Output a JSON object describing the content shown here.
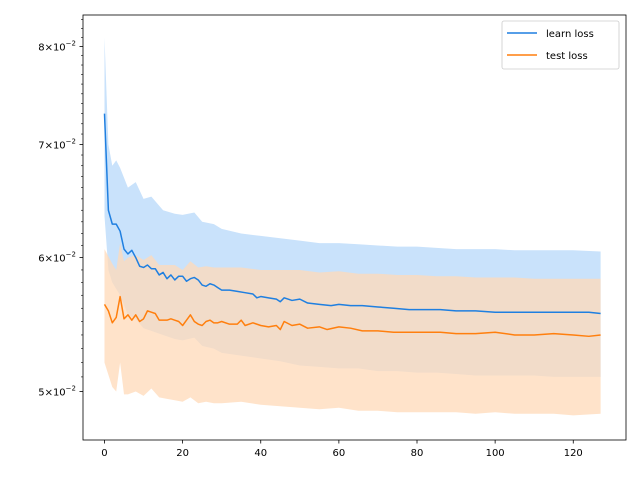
{
  "chart_data": {
    "type": "line",
    "title": "",
    "xlabel": "",
    "ylabel": "",
    "yscale": "log",
    "xlim": [
      -5.5,
      133.5
    ],
    "ylim": [
      0.0468,
      0.0835
    ],
    "grid": false,
    "legend_position": "top-right",
    "x_ticks": [
      0,
      20,
      40,
      60,
      80,
      100,
      120
    ],
    "x_tick_labels": [
      "0",
      "20",
      "40",
      "60",
      "80",
      "100",
      "120"
    ],
    "y_ticks": [
      0.05,
      0.06,
      0.07,
      0.08
    ],
    "y_tick_labels": [
      {
        "mantissa": "5",
        "base": "10",
        "exponent": "−2"
      },
      {
        "mantissa": "6",
        "base": "10",
        "exponent": "−2"
      },
      {
        "mantissa": "7",
        "base": "10",
        "exponent": "−2"
      },
      {
        "mantissa": "8",
        "base": "10",
        "exponent": "−2"
      }
    ],
    "series": [
      {
        "name": "learn loss",
        "color": "#1f7fe0",
        "band_color": "#c9e2fb",
        "points": [
          [
            0,
            0.073
          ],
          [
            1,
            0.064
          ],
          [
            2,
            0.0628
          ],
          [
            3,
            0.0628
          ],
          [
            4,
            0.0622
          ],
          [
            5,
            0.0607
          ],
          [
            6,
            0.0603
          ],
          [
            7,
            0.0606
          ],
          [
            8,
            0.06
          ],
          [
            9,
            0.0593
          ],
          [
            10,
            0.0592
          ],
          [
            11,
            0.0594
          ],
          [
            12,
            0.0591
          ],
          [
            13,
            0.0591
          ],
          [
            14,
            0.0586
          ],
          [
            15,
            0.0588
          ],
          [
            16,
            0.0583
          ],
          [
            17,
            0.0586
          ],
          [
            18,
            0.0582
          ],
          [
            19,
            0.0585
          ],
          [
            20,
            0.0585
          ],
          [
            21,
            0.0581
          ],
          [
            22,
            0.0583
          ],
          [
            23,
            0.0584
          ],
          [
            24,
            0.0582
          ],
          [
            25,
            0.0578
          ],
          [
            26,
            0.0577
          ],
          [
            27,
            0.0579
          ],
          [
            28,
            0.0578
          ],
          [
            29,
            0.0576
          ],
          [
            30,
            0.0574
          ],
          [
            32,
            0.0574
          ],
          [
            34,
            0.0573
          ],
          [
            36,
            0.0572
          ],
          [
            38,
            0.0571
          ],
          [
            39,
            0.0568
          ],
          [
            40,
            0.0569
          ],
          [
            42,
            0.0568
          ],
          [
            44,
            0.0567
          ],
          [
            45,
            0.0565
          ],
          [
            46,
            0.0568
          ],
          [
            48,
            0.0566
          ],
          [
            50,
            0.0567
          ],
          [
            52,
            0.0564
          ],
          [
            55,
            0.0563
          ],
          [
            58,
            0.0562
          ],
          [
            60,
            0.0563
          ],
          [
            63,
            0.0562
          ],
          [
            66,
            0.0562
          ],
          [
            70,
            0.0561
          ],
          [
            74,
            0.056
          ],
          [
            78,
            0.0559
          ],
          [
            82,
            0.0559
          ],
          [
            86,
            0.0559
          ],
          [
            90,
            0.0558
          ],
          [
            95,
            0.0558
          ],
          [
            100,
            0.0557
          ],
          [
            105,
            0.0557
          ],
          [
            110,
            0.0557
          ],
          [
            115,
            0.0557
          ],
          [
            120,
            0.0557
          ],
          [
            124,
            0.0557
          ],
          [
            127,
            0.0556
          ]
        ],
        "band": [
          [
            0,
            0.081,
            0.0635
          ],
          [
            1,
            0.07,
            0.059
          ],
          [
            2,
            0.068,
            0.058
          ],
          [
            3,
            0.0685,
            0.0575
          ],
          [
            4,
            0.0678,
            0.057
          ],
          [
            6,
            0.066,
            0.0555
          ],
          [
            8,
            0.0665,
            0.0552
          ],
          [
            10,
            0.065,
            0.0545
          ],
          [
            12,
            0.0652,
            0.0543
          ],
          [
            15,
            0.064,
            0.054
          ],
          [
            18,
            0.0637,
            0.0537
          ],
          [
            20,
            0.0636,
            0.0536
          ],
          [
            23,
            0.0638,
            0.0538
          ],
          [
            25,
            0.063,
            0.0532
          ],
          [
            28,
            0.0628,
            0.053
          ],
          [
            30,
            0.0624,
            0.0527
          ],
          [
            35,
            0.062,
            0.0525
          ],
          [
            40,
            0.0618,
            0.0523
          ],
          [
            45,
            0.0616,
            0.0521
          ],
          [
            50,
            0.0614,
            0.0518
          ],
          [
            55,
            0.0612,
            0.0517
          ],
          [
            60,
            0.0612,
            0.0516
          ],
          [
            65,
            0.0611,
            0.0516
          ],
          [
            70,
            0.061,
            0.0514
          ],
          [
            75,
            0.0609,
            0.0514
          ],
          [
            80,
            0.0609,
            0.0513
          ],
          [
            85,
            0.0608,
            0.0513
          ],
          [
            90,
            0.0607,
            0.0512
          ],
          [
            95,
            0.0607,
            0.0511
          ],
          [
            100,
            0.0607,
            0.0511
          ],
          [
            105,
            0.0606,
            0.0511
          ],
          [
            110,
            0.0606,
            0.0511
          ],
          [
            115,
            0.0606,
            0.051
          ],
          [
            120,
            0.0606,
            0.051
          ],
          [
            127,
            0.0605,
            0.051
          ]
        ]
      },
      {
        "name": "test loss",
        "color": "#ff7f0e",
        "band_color": "#ffd9b8",
        "points": [
          [
            0,
            0.0563
          ],
          [
            1,
            0.0558
          ],
          [
            2,
            0.0549
          ],
          [
            3,
            0.0553
          ],
          [
            4,
            0.0569
          ],
          [
            5,
            0.0552
          ],
          [
            6,
            0.0555
          ],
          [
            7,
            0.0551
          ],
          [
            8,
            0.0555
          ],
          [
            9,
            0.055
          ],
          [
            10,
            0.0552
          ],
          [
            11,
            0.0558
          ],
          [
            12,
            0.0557
          ],
          [
            13,
            0.0556
          ],
          [
            14,
            0.0551
          ],
          [
            15,
            0.0551
          ],
          [
            16,
            0.0551
          ],
          [
            17,
            0.0552
          ],
          [
            18,
            0.0551
          ],
          [
            19,
            0.055
          ],
          [
            20,
            0.0547
          ],
          [
            21,
            0.0551
          ],
          [
            22,
            0.0555
          ],
          [
            23,
            0.055
          ],
          [
            24,
            0.0548
          ],
          [
            25,
            0.0547
          ],
          [
            26,
            0.055
          ],
          [
            27,
            0.0551
          ],
          [
            28,
            0.0549
          ],
          [
            29,
            0.0549
          ],
          [
            30,
            0.055
          ],
          [
            32,
            0.0548
          ],
          [
            34,
            0.0548
          ],
          [
            35,
            0.0551
          ],
          [
            36,
            0.0547
          ],
          [
            38,
            0.0549
          ],
          [
            40,
            0.0547
          ],
          [
            42,
            0.0546
          ],
          [
            44,
            0.0547
          ],
          [
            45,
            0.0544
          ],
          [
            46,
            0.055
          ],
          [
            48,
            0.0547
          ],
          [
            50,
            0.0548
          ],
          [
            52,
            0.0545
          ],
          [
            55,
            0.0546
          ],
          [
            57,
            0.0544
          ],
          [
            60,
            0.0546
          ],
          [
            63,
            0.0545
          ],
          [
            66,
            0.0543
          ],
          [
            70,
            0.0543
          ],
          [
            74,
            0.0542
          ],
          [
            78,
            0.0542
          ],
          [
            82,
            0.0542
          ],
          [
            86,
            0.0542
          ],
          [
            90,
            0.0541
          ],
          [
            95,
            0.0541
          ],
          [
            100,
            0.0542
          ],
          [
            105,
            0.054
          ],
          [
            110,
            0.054
          ],
          [
            115,
            0.0541
          ],
          [
            120,
            0.054
          ],
          [
            124,
            0.0539
          ],
          [
            127,
            0.054
          ]
        ],
        "band": [
          [
            0,
            0.0607,
            0.052
          ],
          [
            2,
            0.0595,
            0.0503
          ],
          [
            3,
            0.059,
            0.05
          ],
          [
            4,
            0.0612,
            0.052
          ],
          [
            5,
            0.0597,
            0.0498
          ],
          [
            6,
            0.06,
            0.0498
          ],
          [
            8,
            0.0602,
            0.05
          ],
          [
            10,
            0.0598,
            0.0497
          ],
          [
            12,
            0.0602,
            0.0502
          ],
          [
            14,
            0.0594,
            0.0496
          ],
          [
            16,
            0.0594,
            0.0495
          ],
          [
            18,
            0.0594,
            0.0494
          ],
          [
            20,
            0.059,
            0.0493
          ],
          [
            22,
            0.0597,
            0.0496
          ],
          [
            24,
            0.0592,
            0.0492
          ],
          [
            26,
            0.0593,
            0.0493
          ],
          [
            28,
            0.0592,
            0.0492
          ],
          [
            30,
            0.0592,
            0.0492
          ],
          [
            35,
            0.0592,
            0.0493
          ],
          [
            40,
            0.059,
            0.0491
          ],
          [
            45,
            0.059,
            0.049
          ],
          [
            50,
            0.059,
            0.0489
          ],
          [
            55,
            0.0588,
            0.0488
          ],
          [
            60,
            0.0589,
            0.0489
          ],
          [
            65,
            0.0587,
            0.0487
          ],
          [
            70,
            0.0587,
            0.0487
          ],
          [
            75,
            0.0586,
            0.0486
          ],
          [
            80,
            0.0586,
            0.0486
          ],
          [
            85,
            0.0585,
            0.0486
          ],
          [
            90,
            0.0585,
            0.0486
          ],
          [
            95,
            0.0584,
            0.0485
          ],
          [
            100,
            0.0584,
            0.0486
          ],
          [
            105,
            0.0584,
            0.0485
          ],
          [
            110,
            0.0583,
            0.0485
          ],
          [
            115,
            0.0583,
            0.0485
          ],
          [
            120,
            0.0583,
            0.0484
          ],
          [
            127,
            0.0583,
            0.0485
          ]
        ]
      }
    ]
  }
}
